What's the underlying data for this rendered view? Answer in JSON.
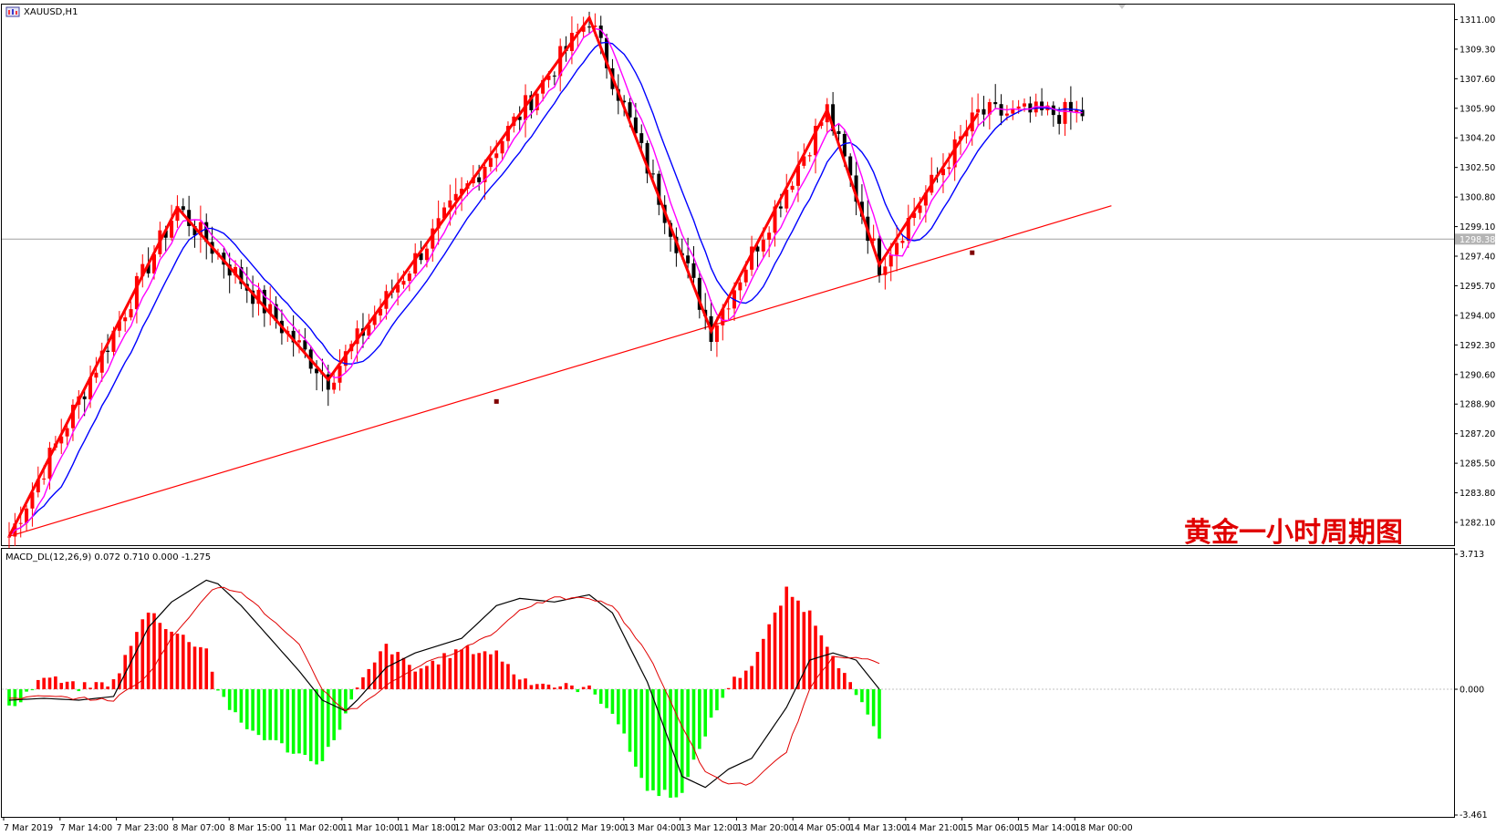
{
  "window": {
    "symbol_label": "XAUUSD,H1",
    "symbol_icon": "chart-window-icon"
  },
  "annotation": "黄金一小时周期图",
  "macd_header": "MACD_DL(12,26,9) 0.072 0.710 0.000 -1.275",
  "price_axis": {
    "labels": [
      "1311.00",
      "1309.30",
      "1307.60",
      "1305.90",
      "1304.20",
      "1302.50",
      "1300.80",
      "1299.10",
      "1297.40",
      "1295.70",
      "1294.00",
      "1292.30",
      "1290.60",
      "1288.90",
      "1287.20",
      "1285.50",
      "1283.80",
      "1282.10"
    ],
    "current": "1298.38"
  },
  "macd_axis": {
    "top": "3.713",
    "zero": "0.000",
    "bottom": "-3.461"
  },
  "time_axis": [
    "7 Mar 2019",
    "7 Mar 14:00",
    "7 Mar 23:00",
    "8 Mar 07:00",
    "8 Mar 15:00",
    "11 Mar 02:00",
    "11 Mar 10:00",
    "11 Mar 18:00",
    "12 Mar 03:00",
    "12 Mar 11:00",
    "12 Mar 19:00",
    "13 Mar 04:00",
    "13 Mar 12:00",
    "13 Mar 20:00",
    "14 Mar 05:00",
    "14 Mar 13:00",
    "14 Mar 21:00",
    "15 Mar 06:00",
    "15 Mar 14:00",
    "18 Mar 00:00"
  ],
  "colors": {
    "bull": "#ff0000",
    "bear": "#000000",
    "ma_fast": "#ff00ff",
    "ma_slow": "#0000ff",
    "trend": "#ff0000",
    "hist_pos": "#ff0000",
    "hist_neg": "#00ff00",
    "macd_line": "#000000",
    "signal_line": "#ff0000"
  },
  "chart_data": [
    {
      "type": "candlestick",
      "title": "XAUUSD,H1",
      "y_range": [
        1281.0,
        1311.6
      ],
      "current_price": 1298.38,
      "zigzag_anchors": [
        {
          "i": 0,
          "price": 1281.3
        },
        {
          "i": 29,
          "price": 1300.2
        },
        {
          "i": 55,
          "price": 1290.3
        },
        {
          "i": 100,
          "price": 1311.1
        },
        {
          "i": 121,
          "price": 1293.1
        },
        {
          "i": 141,
          "price": 1305.8
        },
        {
          "i": 150,
          "price": 1296.9
        },
        {
          "i": 167,
          "price": 1305.6
        }
      ],
      "trendline": {
        "i1": 0,
        "p1": 1281.3,
        "i2": 190,
        "p2": 1300.3
      },
      "trendline_markers": [
        {
          "i": 84,
          "price": 1289.05
        },
        {
          "i": 166,
          "price": 1297.6
        }
      ]
    },
    {
      "type": "macd",
      "title": "MACD_DL(12,26,9)",
      "y_range": [
        -3.461,
        3.713
      ],
      "anchors": [
        {
          "i": 0,
          "hist": -0.55,
          "macd": -0.3,
          "signal": -0.25
        },
        {
          "i": 6,
          "hist": 0.35,
          "macd": -0.25,
          "signal": -0.2
        },
        {
          "i": 12,
          "hist": 0.05,
          "macd": -0.3,
          "signal": -0.25
        },
        {
          "i": 18,
          "hist": 0.2,
          "macd": -0.2,
          "signal": -0.3
        },
        {
          "i": 24,
          "hist": 2.2,
          "macd": 1.7,
          "signal": 0.4
        },
        {
          "i": 28,
          "hist": 1.6,
          "macd": 2.4,
          "signal": 1.4
        },
        {
          "i": 34,
          "hist": 1.1,
          "macd": 3.0,
          "signal": 2.6
        },
        {
          "i": 36,
          "hist": 0.0,
          "macd": 2.9,
          "signal": 2.8
        },
        {
          "i": 40,
          "hist": -1.0,
          "macd": 2.3,
          "signal": 2.7
        },
        {
          "i": 50,
          "hist": -1.8,
          "macd": 0.5,
          "signal": 1.2
        },
        {
          "i": 54,
          "hist": -2.0,
          "macd": -0.3,
          "signal": 0.0
        },
        {
          "i": 58,
          "hist": -0.7,
          "macd": -0.6,
          "signal": -0.6
        },
        {
          "i": 60,
          "hist": 0.0,
          "macd": -0.3,
          "signal": -0.5
        },
        {
          "i": 65,
          "hist": 1.2,
          "macd": 0.6,
          "signal": 0.1
        },
        {
          "i": 70,
          "hist": 0.5,
          "macd": 1.0,
          "signal": 0.6
        },
        {
          "i": 78,
          "hist": 1.1,
          "macd": 1.4,
          "signal": 1.1
        },
        {
          "i": 84,
          "hist": 1.0,
          "macd": 2.3,
          "signal": 1.6
        },
        {
          "i": 88,
          "hist": 0.3,
          "macd": 2.5,
          "signal": 2.2
        },
        {
          "i": 94,
          "hist": 0.1,
          "macd": 2.4,
          "signal": 2.5
        },
        {
          "i": 100,
          "hist": 0.0,
          "macd": 2.6,
          "signal": 2.5
        },
        {
          "i": 104,
          "hist": -0.6,
          "macd": 2.1,
          "signal": 2.3
        },
        {
          "i": 110,
          "hist": -2.8,
          "macd": 0.2,
          "signal": 1.0
        },
        {
          "i": 116,
          "hist": -2.9,
          "macd": -2.4,
          "signal": -1.0
        },
        {
          "i": 120,
          "hist": -1.2,
          "macd": -2.7,
          "signal": -2.3
        },
        {
          "i": 124,
          "hist": 0.1,
          "macd": -2.2,
          "signal": -2.6
        },
        {
          "i": 128,
          "hist": 0.7,
          "macd": -1.9,
          "signal": -2.6
        },
        {
          "i": 134,
          "hist": 2.7,
          "macd": -0.5,
          "signal": -1.7
        },
        {
          "i": 138,
          "hist": 2.1,
          "macd": 0.8,
          "signal": 0.0
        },
        {
          "i": 142,
          "hist": 1.0,
          "macd": 1.0,
          "signal": 0.9
        },
        {
          "i": 146,
          "hist": -0.2,
          "macd": 0.8,
          "signal": 0.9
        },
        {
          "i": 150,
          "hist": -1.3,
          "macd": 0.0,
          "signal": 0.7
        }
      ]
    }
  ]
}
